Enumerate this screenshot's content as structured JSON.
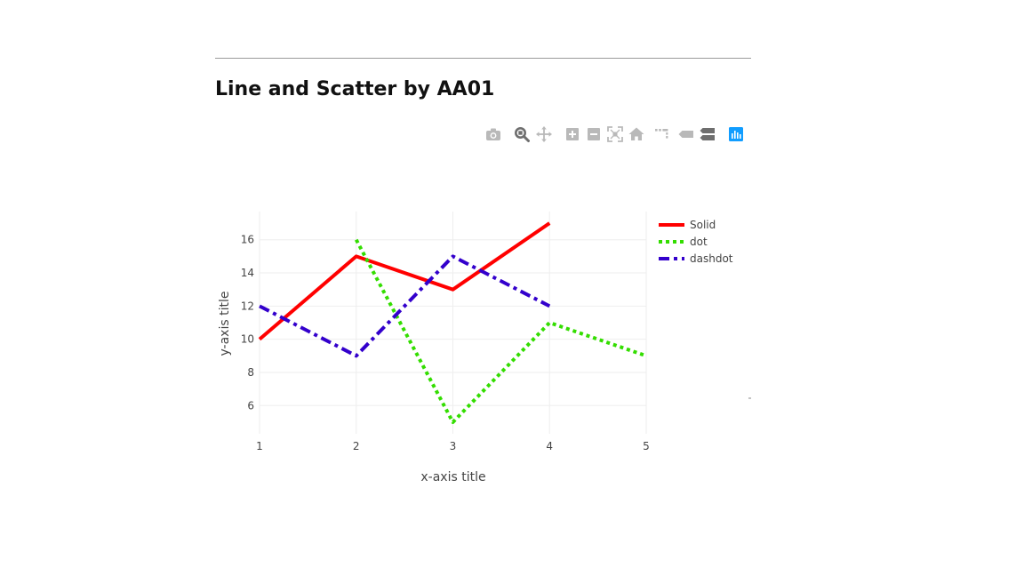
{
  "page": {
    "title": "Line and Scatter by AA01"
  },
  "modebar": {
    "buttons": [
      {
        "name": "camera-icon"
      },
      {
        "name": "zoom-icon"
      },
      {
        "name": "pan-icon"
      },
      {
        "name": "zoom-in-icon"
      },
      {
        "name": "zoom-out-icon"
      },
      {
        "name": "autoscale-icon"
      },
      {
        "name": "reset-axes-icon"
      },
      {
        "name": "spike-lines-icon"
      },
      {
        "name": "hover-closest-icon"
      },
      {
        "name": "hover-compare-icon"
      },
      {
        "name": "plotly-logo-icon"
      }
    ],
    "icon_color": "#b9b9b9",
    "active_color": "#6e6e6e",
    "logo_color": "#119dff"
  },
  "chart_data": {
    "type": "line",
    "title": "",
    "xlabel": "x-axis title",
    "ylabel": "y-axis title",
    "xlim": [
      1,
      5
    ],
    "ylim": [
      4.3,
      17.7
    ],
    "xticks": [
      1,
      2,
      3,
      4,
      5
    ],
    "yticks": [
      6,
      8,
      10,
      12,
      14,
      16
    ],
    "grid": true,
    "legend_position": "top-right",
    "series": [
      {
        "name": "Solid",
        "x": [
          1,
          2,
          3,
          4
        ],
        "y": [
          10,
          15,
          13,
          17
        ],
        "color": "#ff0000",
        "dash": "solid"
      },
      {
        "name": "dot",
        "x": [
          2,
          3,
          4,
          5
        ],
        "y": [
          16,
          5,
          11,
          9
        ],
        "color": "#33dd00",
        "dash": "dot"
      },
      {
        "name": "dashdot",
        "x": [
          1,
          2,
          3,
          4
        ],
        "y": [
          12,
          9,
          15,
          12
        ],
        "color": "#3300cc",
        "dash": "dashdot"
      }
    ]
  }
}
